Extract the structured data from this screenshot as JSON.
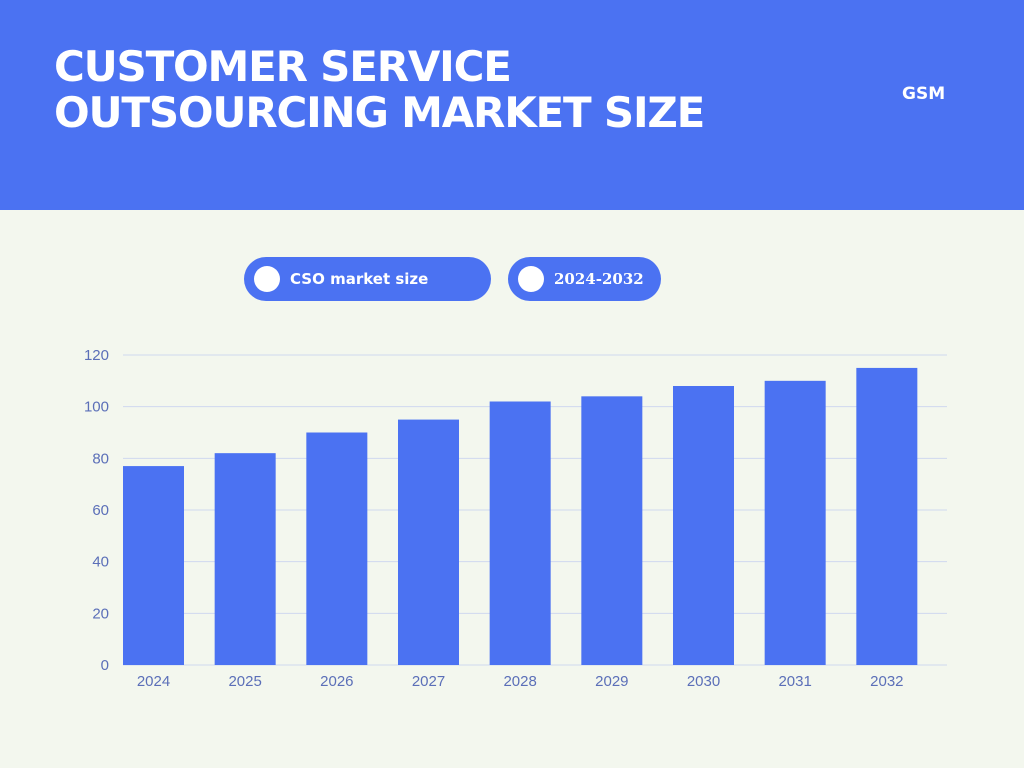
{
  "header": {
    "title_line1": "CUSTOMER SERVICE",
    "title_line2": "OUTSOURCING MARKET SIZE",
    "brand": "GSM"
  },
  "legend": {
    "series_label": "CSO market size",
    "range_label": "2024-2032"
  },
  "colors": {
    "header_bg": "#4b72f2",
    "bar": "#4b72f2",
    "page_bg": "#f3f7ee",
    "gridline": "#cfd8ef",
    "axis_text": "#5b6fb8"
  },
  "chart_data": {
    "type": "bar",
    "title": "CUSTOMER SERVICE OUTSOURCING MARKET SIZE",
    "categories": [
      "2024",
      "2025",
      "2026",
      "2027",
      "2028",
      "2029",
      "2030",
      "2031",
      "2032"
    ],
    "values": [
      77,
      82,
      90,
      95,
      102,
      104,
      108,
      110,
      115
    ],
    "series": [
      {
        "name": "CSO market size",
        "values": [
          77,
          82,
          90,
          95,
          102,
          104,
          108,
          110,
          115
        ]
      }
    ],
    "xlabel": "",
    "ylabel": "",
    "ylim": [
      0,
      120
    ],
    "yticks": [
      0,
      20,
      40,
      60,
      80,
      100,
      120
    ],
    "grid": true,
    "legend_position": "top"
  }
}
